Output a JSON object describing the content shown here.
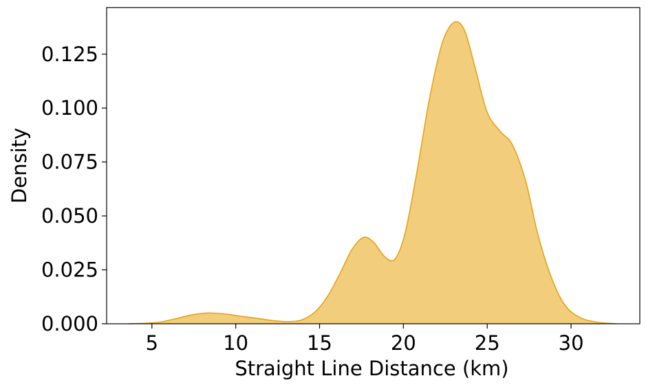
{
  "chart_data": {
    "type": "area",
    "title": "",
    "xlabel": "Straight Line Distance (km)",
    "ylabel": "Density",
    "xlim": [
      2.3,
      34.1
    ],
    "ylim": [
      0,
      0.1466
    ],
    "grid": false,
    "x_ticks": [
      5,
      10,
      15,
      20,
      25,
      30
    ],
    "x_tick_labels": [
      "5",
      "10",
      "15",
      "20",
      "25",
      "30"
    ],
    "y_ticks": [
      0,
      0.025,
      0.05,
      0.075,
      0.1,
      0.125
    ],
    "y_tick_labels": [
      "0.000",
      "0.025",
      "0.050",
      "0.075",
      "0.100",
      "0.125"
    ],
    "fill_color": "#f2cd7b",
    "line_color": "#e6a317",
    "series": [
      {
        "x": [
          3.6,
          4.5,
          5.5,
          6.5,
          7.3,
          8.3,
          9.3,
          10.3,
          11.3,
          12.3,
          13.2,
          14.0,
          14.8,
          15.5,
          16.2,
          16.9,
          17.6,
          18.2,
          18.9,
          19.5,
          20.1,
          20.8,
          21.5,
          22.2,
          22.7,
          23.2,
          23.7,
          24.3,
          25.0,
          25.8,
          26.5,
          27.3,
          28.0,
          28.8,
          29.6,
          30.5,
          31.5,
          32.7
        ],
        "y": [
          0.0,
          0.0002,
          0.0008,
          0.0025,
          0.004,
          0.005,
          0.0046,
          0.0035,
          0.0025,
          0.0014,
          0.001,
          0.002,
          0.006,
          0.013,
          0.023,
          0.034,
          0.04,
          0.038,
          0.031,
          0.03,
          0.042,
          0.07,
          0.102,
          0.127,
          0.137,
          0.14,
          0.135,
          0.118,
          0.098,
          0.089,
          0.083,
          0.066,
          0.042,
          0.022,
          0.009,
          0.003,
          0.0008,
          0.0
        ]
      }
    ]
  }
}
